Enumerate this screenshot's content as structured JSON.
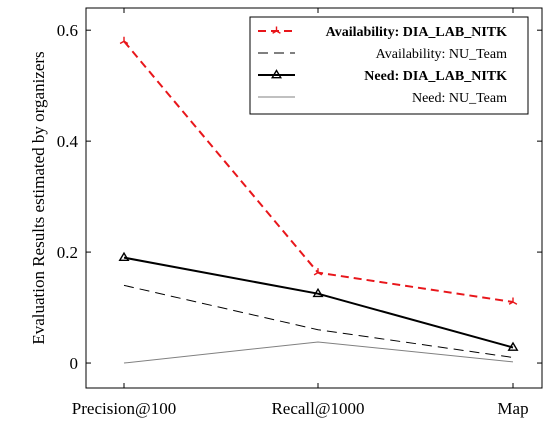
{
  "chart_data": {
    "type": "line",
    "title": "",
    "xlabel": "",
    "ylabel": "Evaluation Results estimated by organizers",
    "categories": [
      "Precision@100",
      "Recall@1000",
      "Map"
    ],
    "ylim": [
      -0.045,
      0.64
    ],
    "yticks": [
      0,
      0.2,
      0.4,
      0.6
    ],
    "ytick_labels": [
      "0",
      "0.2",
      "0.4",
      "0.6"
    ],
    "grid": false,
    "legend_position": "top-right",
    "series": [
      {
        "name": "Availability: DIA_LAB_NITK",
        "values": [
          0.58,
          0.163,
          0.11
        ],
        "color": "#e8161b",
        "style": "dashed",
        "marker": "tri-star",
        "bold": true
      },
      {
        "name": "Availability: NU_Team",
        "values": [
          0.14,
          0.06,
          0.01
        ],
        "color": "#000000",
        "style": "dashed",
        "marker": "none",
        "bold": false
      },
      {
        "name": "Need: DIA_LAB_NITK",
        "values": [
          0.19,
          0.125,
          0.028
        ],
        "color": "#000000",
        "style": "solid",
        "marker": "triangle",
        "bold": true
      },
      {
        "name": "Need: NU_Team",
        "values": [
          0.0,
          0.038,
          0.002
        ],
        "color": "#808080",
        "style": "solid",
        "marker": "none",
        "bold": false
      }
    ]
  }
}
